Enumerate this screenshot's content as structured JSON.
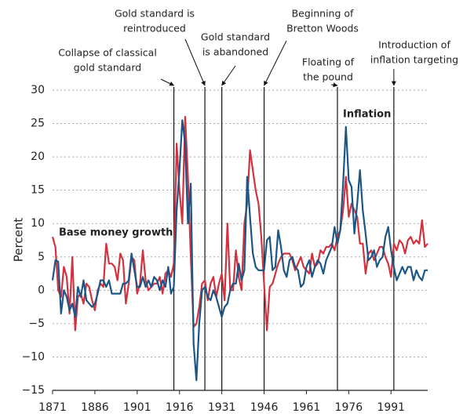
{
  "chart_data": {
    "type": "line",
    "y_label": "Percent",
    "x": [
      1871,
      1872,
      1873,
      1874,
      1875,
      1876,
      1877,
      1878,
      1879,
      1880,
      1881,
      1882,
      1883,
      1884,
      1885,
      1886,
      1887,
      1888,
      1889,
      1890,
      1891,
      1892,
      1893,
      1894,
      1895,
      1896,
      1897,
      1898,
      1899,
      1900,
      1901,
      1902,
      1903,
      1904,
      1905,
      1906,
      1907,
      1908,
      1909,
      1910,
      1911,
      1912,
      1913,
      1914,
      1915,
      1916,
      1917,
      1918,
      1919,
      1920,
      1921,
      1922,
      1923,
      1924,
      1925,
      1926,
      1927,
      1928,
      1929,
      1930,
      1931,
      1932,
      1933,
      1934,
      1935,
      1936,
      1937,
      1938,
      1939,
      1940,
      1941,
      1942,
      1943,
      1944,
      1945,
      1946,
      1947,
      1948,
      1949,
      1950,
      1951,
      1952,
      1953,
      1954,
      1955,
      1956,
      1957,
      1958,
      1959,
      1960,
      1961,
      1962,
      1963,
      1964,
      1965,
      1966,
      1967,
      1968,
      1969,
      1970,
      1971,
      1972,
      1973,
      1974,
      1975,
      1976,
      1977,
      1978,
      1979,
      1980,
      1981,
      1982,
      1983,
      1984,
      1985,
      1986,
      1987,
      1988,
      1989,
      1990,
      1991,
      1992,
      1993,
      1994,
      1995,
      1996,
      1997,
      1998,
      1999,
      2000,
      2001,
      2002,
      2003,
      2004
    ],
    "series": [
      {
        "name": "Base money growth",
        "color": "#d2323f",
        "values": [
          8,
          6.5,
          0,
          -1,
          3.5,
          2,
          -3.5,
          5,
          -6,
          -1,
          -0.5,
          -2,
          1,
          0.5,
          -1.5,
          -3,
          0,
          1,
          0.5,
          7,
          4,
          4,
          3.5,
          1.5,
          5.5,
          4.5,
          -2,
          1,
          5,
          4.5,
          -0.5,
          1,
          6,
          1.5,
          0,
          0.5,
          1,
          1,
          2,
          -0.5,
          2.5,
          3,
          2,
          4,
          22,
          15,
          10,
          26,
          17,
          5,
          -5.5,
          -5,
          -2.5,
          1,
          1.5,
          -1.5,
          1,
          2,
          -1,
          1,
          2.5,
          -1.5,
          10,
          0,
          0,
          6,
          2,
          0,
          10,
          13,
          21,
          18,
          15,
          13,
          8,
          1,
          -6,
          0.5,
          1,
          2.5,
          4,
          5,
          5.5,
          5.5,
          5.5,
          4.5,
          3,
          4,
          5,
          3.5,
          3,
          2.5,
          5.5,
          3.5,
          4,
          6,
          5.5,
          6.5,
          6.5,
          7,
          6,
          8,
          9,
          12,
          17,
          11,
          13,
          12,
          11,
          7,
          7,
          2.5,
          5.5,
          6,
          4.5,
          5.5,
          6.5,
          6.5,
          5,
          4,
          2,
          7,
          6,
          7.5,
          7,
          5.5,
          7.5,
          8,
          7,
          7.5,
          7,
          10.5,
          6.5,
          7
        ]
      },
      {
        "name": "Inflation",
        "color": "#1c5687",
        "values": [
          1.5,
          4.5,
          4.3,
          -3.5,
          0,
          -1,
          -3,
          -2,
          -4,
          0.5,
          -1,
          1.5,
          -1.5,
          -2,
          -2.5,
          -2,
          -0.5,
          1.5,
          1.5,
          0.5,
          1.5,
          -0.5,
          -0.5,
          -0.5,
          -0.5,
          1,
          1,
          1.5,
          5.5,
          3,
          0.5,
          0.5,
          2,
          0.5,
          1.5,
          0.5,
          2,
          1.5,
          0,
          1.5,
          0.5,
          3.5,
          -0.5,
          0.5,
          12,
          18,
          25.5,
          22,
          10,
          16,
          -8,
          -13.5,
          -5,
          0,
          0.5,
          -1,
          -1.5,
          0,
          -1,
          -2.5,
          -4,
          -2.5,
          -2,
          0,
          1,
          1,
          4,
          1.5,
          3,
          17,
          11,
          5.5,
          3.5,
          3,
          3,
          3,
          7.5,
          8,
          3,
          3.5,
          9,
          6.5,
          3,
          2,
          4.5,
          5,
          3.5,
          3,
          0.5,
          1,
          3.5,
          4.5,
          2,
          3.5,
          4.5,
          4,
          2.5,
          4.5,
          5.5,
          6.5,
          9.5,
          7,
          9,
          16,
          24.5,
          16.5,
          15.5,
          8.5,
          13,
          18,
          12,
          8.5,
          4.5,
          5,
          6,
          3.5,
          4.5,
          5,
          8,
          9.5,
          6,
          3.5,
          1.5,
          2.5,
          3.5,
          2.5,
          3.5,
          3.5,
          1.5,
          3,
          2,
          1.5,
          3,
          3
        ]
      }
    ],
    "xlim": [
      1871,
      2004
    ],
    "xticks": [
      1871,
      1886,
      1901,
      1916,
      1931,
      1946,
      1961,
      1976,
      1991
    ],
    "ylim": [
      -15,
      30
    ],
    "yticks": [
      {
        "value": -15,
        "label": "−15"
      },
      {
        "value": -10,
        "label": "−10"
      },
      {
        "value": -5,
        "label": "−5"
      },
      0,
      5,
      10,
      15,
      20,
      25,
      30
    ],
    "grid": true,
    "annotations": [
      {
        "lines": [
          "Collapse of classical",
          "gold standard"
        ],
        "x": 1914
      },
      {
        "lines": [
          "Gold standard is",
          "reintroduced"
        ],
        "x": 1925
      },
      {
        "lines": [
          "Gold standard",
          "is abandoned"
        ],
        "x": 1931
      },
      {
        "lines": [
          "Beginning of",
          "Bretton Woods"
        ],
        "x": 1946
      },
      {
        "lines": [
          "Floating of",
          "the pound"
        ],
        "x": 1972
      },
      {
        "lines": [
          "Introduction of",
          "inflation targeting"
        ],
        "x": 1992
      }
    ]
  }
}
